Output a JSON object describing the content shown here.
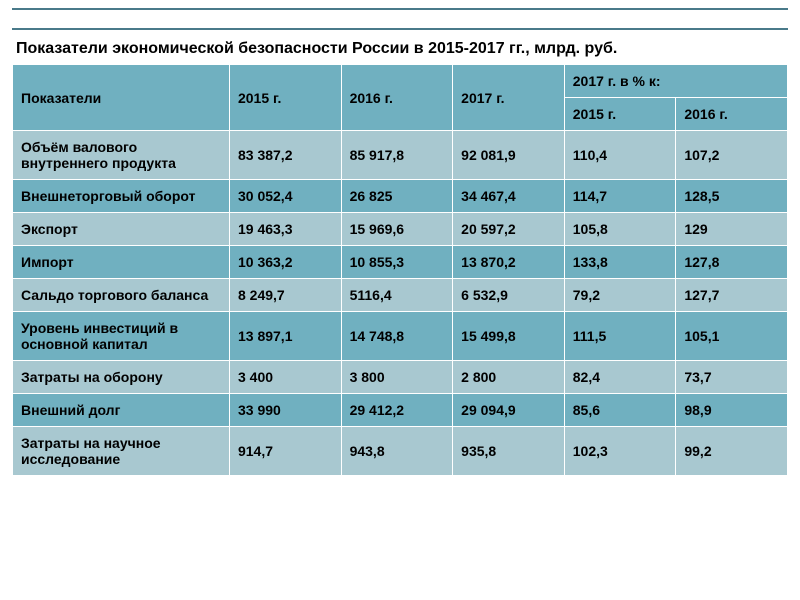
{
  "title": "Показатели экономической безопасности России в 2015-2017 гг., млрд. руб.",
  "table": {
    "header_col_indicator": "Показатели",
    "header_2015": "2015 г.",
    "header_2016": "2016 г.",
    "header_2017": "2017 г.",
    "header_pct_group": "2017 г. в % к:",
    "header_pct_2015": "2015 г.",
    "header_pct_2016": "2016 г.",
    "rows": [
      {
        "indicator": "Объём валового внутреннего продукта",
        "y2015": "83 387,2",
        "y2016": "85 917,8",
        "y2017": "92 081,9",
        "pct2015": "110,4",
        "pct2016": "107,2"
      },
      {
        "indicator": "Внешнеторговый оборот",
        "y2015": "30 052,4",
        "y2016": "26 825",
        "y2017": "34 467,4",
        "pct2015": "114,7",
        "pct2016": "128,5"
      },
      {
        "indicator": "Экспорт",
        "y2015": "19 463,3",
        "y2016": "15 969,6",
        "y2017": "20 597,2",
        "pct2015": "105,8",
        "pct2016": "129"
      },
      {
        "indicator": "Импорт",
        "y2015": "10 363,2",
        "y2016": "10 855,3",
        "y2017": "13 870,2",
        "pct2015": "133,8",
        "pct2016": "127,8"
      },
      {
        "indicator": "Сальдо торгового баланса",
        "y2015": "8 249,7",
        "y2016": "5116,4",
        "y2017": "6 532,9",
        "pct2015": "79,2",
        "pct2016": "127,7"
      },
      {
        "indicator": "Уровень инвестиций в основной капитал",
        "y2015": "13 897,1",
        "y2016": "14 748,8",
        "y2017": "15 499,8",
        "pct2015": "111,5",
        "pct2016": "105,1"
      },
      {
        "indicator": "Затраты на оборону",
        "y2015": "3 400",
        "y2016": "3 800",
        "y2017": "2 800",
        "pct2015": "82,4",
        "pct2016": "73,7"
      },
      {
        "indicator": "Внешний долг",
        "y2015": "33 990",
        "y2016": "29 412,2",
        "y2017": "29 094,9",
        "pct2015": "85,6",
        "pct2016": "98,9"
      },
      {
        "indicator": "Затраты на научное исследование",
        "y2015": "914,7",
        "y2016": "943,8",
        "y2017": "935,8",
        "pct2015": "102,3",
        "pct2016": "99,2"
      }
    ]
  },
  "colors": {
    "header_bg": "#70b0c0",
    "row_dark": "#70b0c0",
    "row_light": "#a8c8d0",
    "border": "#ffffff",
    "text": "#000000",
    "title_accent": "#4a7a8a"
  }
}
